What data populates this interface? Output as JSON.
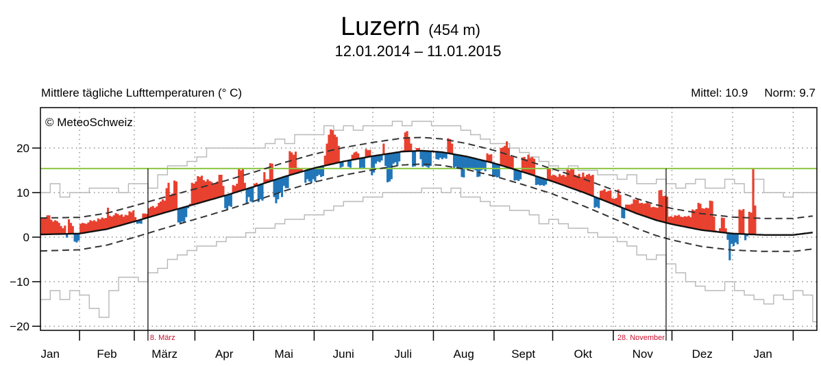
{
  "header": {
    "station": "Luzern",
    "altitude": "(454 m)",
    "period": "12.01.2014 – 11.01.2015",
    "subtitle": "Mittlere tägliche Lufttemperaturen (° C)",
    "mittel": "Mittel: 10.9",
    "norm": "Norm: 9.7",
    "copyright": "© MeteoSchweiz"
  },
  "chart_data": {
    "type": "bar",
    "title": "Luzern (454 m)",
    "subtitle": "12.01.2014 – 11.01.2015",
    "ylabel": "Mittlere tägliche Lufttemperaturen (° C)",
    "start_date": "12.01.2014",
    "xlim_days": [
      0,
      396
    ],
    "ylim": [
      -22,
      29
    ],
    "yticks": [
      20,
      10,
      0,
      -10,
      -20
    ],
    "ytick_labels": [
      "20",
      "10",
      "0",
      "−10",
      "−20"
    ],
    "grid": true,
    "mean": 10.9,
    "norm_mean": 9.7,
    "threshold": 15.4,
    "colors": {
      "above": "#e8412f",
      "below": "#2176b8",
      "threshold": "#8cc63f",
      "record": "#b8b8b8"
    },
    "month_ticks_day": [
      20,
      48,
      79,
      109,
      140,
      170,
      201,
      232,
      262,
      293,
      323,
      354,
      385
    ],
    "months": [
      {
        "label": "Jan",
        "day": 5
      },
      {
        "label": "Feb",
        "day": 34
      },
      {
        "label": "März",
        "day": 63.5
      },
      {
        "label": "Apr",
        "day": 94
      },
      {
        "label": "Mai",
        "day": 124.5
      },
      {
        "label": "Juni",
        "day": 155
      },
      {
        "label": "Juli",
        "day": 185.5
      },
      {
        "label": "Aug",
        "day": 216.5
      },
      {
        "label": "Sept",
        "day": 247
      },
      {
        "label": "Okt",
        "day": 277.5
      },
      {
        "label": "Nov",
        "day": 308
      },
      {
        "label": "Dez",
        "day": 338.5
      },
      {
        "label": "Jan",
        "day": 369.5
      }
    ],
    "markers": [
      {
        "label": "8. März",
        "day": 55
      },
      {
        "label": "28. November",
        "day": 320
      }
    ],
    "daily_temp": [
      4.3,
      4.4,
      4.3,
      4.9,
      4.9,
      3.9,
      3.5,
      3.8,
      3.6,
      3.2,
      2.5,
      2.0,
      2.6,
      -0.1,
      4.0,
      3.2,
      2.5,
      -1.0,
      -1.2,
      -0.8,
      3.0,
      3.2,
      3.1,
      3.0,
      3.3,
      3.8,
      3.6,
      3.8,
      3.5,
      4.2,
      4.0,
      4.4,
      4.2,
      4.3,
      6.6,
      4.8,
      4.6,
      4.9,
      5.4,
      5.2,
      4.9,
      5.1,
      4.6,
      5.0,
      4.9,
      5.8,
      5.6,
      6.0,
      4.5,
      3.0,
      3.1,
      3.0,
      5.3,
      5.3,
      5.2,
      6.5,
      6.8,
      7.0,
      6.6,
      6.9,
      7.7,
      8.0,
      8.5,
      8.2,
      11.0,
      12.2,
      9.5,
      9.8,
      12.7,
      12.5,
      3.3,
      3.2,
      3.5,
      3.4,
      4.5,
      6.5,
      7.5,
      12.2,
      12.0,
      12.5,
      13.7,
      13.5,
      13.8,
      12.8,
      12.5,
      13.0,
      12.6,
      12.4,
      11.8,
      12.0,
      12.5,
      14.0,
      14.0,
      11.5,
      6.5,
      6.3,
      7.0,
      6.8,
      11.7,
      11.5,
      12.0,
      15.5,
      15.0,
      15.3,
      12.2,
      7.6,
      9.0,
      8.0,
      7.8,
      12.0,
      12.2,
      7.9,
      8.5,
      8.2,
      14.6,
      13.0,
      13.0,
      16.6,
      16.5,
      9.0,
      7.6,
      8.5,
      10.0,
      9.0,
      11.5,
      11.0,
      11.0,
      19.3,
      19.0,
      18.5,
      19.2,
      15.6,
      15.3,
      15.5,
      15.0,
      12.2,
      13.0,
      12.5,
      12.2,
      13.0,
      12.5,
      13.7,
      14.0,
      13.5,
      13.7,
      18.3,
      21.0,
      23.0,
      24.2,
      24.0,
      23.0,
      22.5,
      20.5,
      15.6,
      15.8,
      17.2,
      17.0,
      15.8,
      15.6,
      18.5,
      19.0,
      19.2,
      18.8,
      15.5,
      15.6,
      15.4,
      19.8,
      19.5,
      19.6,
      13.9,
      14.5,
      16.5,
      17.0,
      16.8,
      17.2,
      21.0,
      16.0,
      12.3,
      12.5,
      13.0,
      16.5,
      16.8,
      16.0,
      17.0,
      19.4,
      19.5,
      23.5,
      23.8,
      22.5,
      21.0,
      15.8,
      15.9,
      20.0,
      20.0,
      17.5,
      15.8,
      16.0,
      15.8,
      15.6,
      16.0,
      19.5,
      19.3,
      17.5,
      17.4,
      17.8,
      17.5,
      17.8,
      17.6,
      22.2,
      22.0,
      21.0,
      15.5,
      15.8,
      15.4,
      15.5,
      13.5,
      13.4,
      15.3,
      15.0,
      15.5,
      15.3,
      15.2,
      15.0,
      13.5,
      13.6,
      15.0,
      15.2,
      14.8,
      18.8,
      18.5,
      18.6,
      13.5,
      13.6,
      13.4,
      13.5,
      20.0,
      20.2,
      20.5,
      21.5,
      20.0,
      18.2,
      18.0,
      12.7,
      12.8,
      12.6,
      13.0,
      17.9,
      18.0,
      17.5,
      18.5,
      17.8,
      18.0,
      17.6,
      11.7,
      11.8,
      11.6,
      11.7,
      11.5,
      11.8,
      15.5,
      15.4,
      13.8,
      14.0,
      13.8,
      13.5,
      14.2,
      13.8,
      14.0,
      13.6,
      15.2,
      15.0,
      15.3,
      15.2,
      14.0,
      13.8,
      14.2,
      13.5,
      14.5,
      13.6,
      14.0,
      14.2,
      13.8,
      14.0,
      6.6,
      6.8,
      6.5,
      10.4,
      10.5,
      10.8,
      10.2,
      10.4,
      10.5,
      8.7,
      8.6,
      8.8,
      10.7,
      9.5,
      4.3,
      4.2,
      7.3,
      7.3,
      7.3,
      7.5,
      8.5,
      8.4,
      8.6,
      7.6,
      7.7,
      7.5,
      7.6,
      7.8,
      7.5,
      6.7,
      6.8,
      6.7,
      6.6,
      10.5,
      10.6,
      9.2,
      9.3,
      9.1,
      4.6,
      4.7,
      4.5,
      4.9,
      4.8,
      5.0,
      4.6,
      4.5,
      4.7,
      4.6,
      4.8,
      4.5,
      6.2,
      6.0,
      6.3,
      7.7,
      7.5,
      6.5,
      6.4,
      6.6,
      6.5,
      8.2,
      8.1,
      4.6,
      1.5,
      1.3,
      2.0,
      4.4,
      4.3,
      2.0,
      -0.6,
      -5.2,
      -1.5,
      -2.0,
      -1.2,
      -1.6,
      6.2,
      6.0,
      6.3,
      -0.7,
      0.2,
      5.7,
      5.5,
      15.4,
      7.1
    ],
    "norm_curve": [
      [
        0,
        0.6
      ],
      [
        20,
        0.8
      ],
      [
        34,
        1.8
      ],
      [
        48,
        3.5
      ],
      [
        62,
        5.3
      ],
      [
        79,
        7.4
      ],
      [
        95,
        9.4
      ],
      [
        109,
        11.3
      ],
      [
        125,
        13.6
      ],
      [
        140,
        15.5
      ],
      [
        155,
        17.0
      ],
      [
        170,
        18.2
      ],
      [
        185,
        19.2
      ],
      [
        195,
        19.4
      ],
      [
        205,
        19.1
      ],
      [
        218,
        18.1
      ],
      [
        232,
        16.6
      ],
      [
        247,
        14.6
      ],
      [
        262,
        12.5
      ],
      [
        278,
        10.0
      ],
      [
        293,
        7.4
      ],
      [
        305,
        5.3
      ],
      [
        315,
        3.8
      ],
      [
        323,
        2.9
      ],
      [
        338,
        1.6
      ],
      [
        354,
        0.8
      ],
      [
        370,
        0.5
      ],
      [
        385,
        0.5
      ],
      [
        396,
        1.1
      ]
    ],
    "norm_band_halfwidth": [
      [
        0,
        3.7
      ],
      [
        60,
        3.5
      ],
      [
        120,
        3.2
      ],
      [
        190,
        3.0
      ],
      [
        260,
        2.8
      ],
      [
        300,
        3.3
      ],
      [
        340,
        3.7
      ],
      [
        396,
        3.7
      ]
    ],
    "record_step_days": 5,
    "record_max": [
      10,
      12,
      9,
      10,
      10,
      11,
      11,
      11,
      10,
      12,
      12,
      11,
      14,
      16,
      16,
      17,
      18,
      20,
      20,
      20,
      20,
      20,
      20,
      21,
      22,
      21,
      23,
      23,
      23,
      25,
      24,
      25,
      24,
      25,
      25,
      25,
      26,
      25,
      26,
      26,
      25,
      25,
      25,
      24,
      23,
      22,
      21,
      21,
      20,
      19,
      18,
      17,
      16,
      15,
      16,
      15,
      15,
      14,
      14,
      13,
      14,
      12,
      12,
      13,
      12,
      11,
      12,
      13,
      11,
      11,
      13,
      12,
      10,
      13,
      10,
      10,
      9,
      10,
      10,
      10
    ],
    "record_min": [
      -14,
      -12,
      -14,
      -12,
      -13,
      -16,
      -18,
      -12,
      -9,
      -9,
      -10,
      -8,
      -7,
      -5,
      -4,
      -3,
      -2,
      -2,
      -1,
      0,
      0,
      1,
      2,
      2,
      3,
      4,
      4,
      5,
      5,
      6,
      7,
      8,
      8,
      9,
      9,
      10,
      10,
      10,
      10,
      11,
      11,
      10,
      11,
      9,
      9,
      8,
      7,
      7,
      6,
      6,
      5,
      3,
      4,
      3,
      2,
      2,
      1,
      0,
      0,
      -1,
      -2,
      -4,
      -5,
      -4,
      -6,
      -8,
      -10,
      -11,
      -12,
      -12,
      -10,
      -12,
      -13,
      -14,
      -15,
      -13,
      -14,
      -12,
      -13,
      -19
    ]
  }
}
